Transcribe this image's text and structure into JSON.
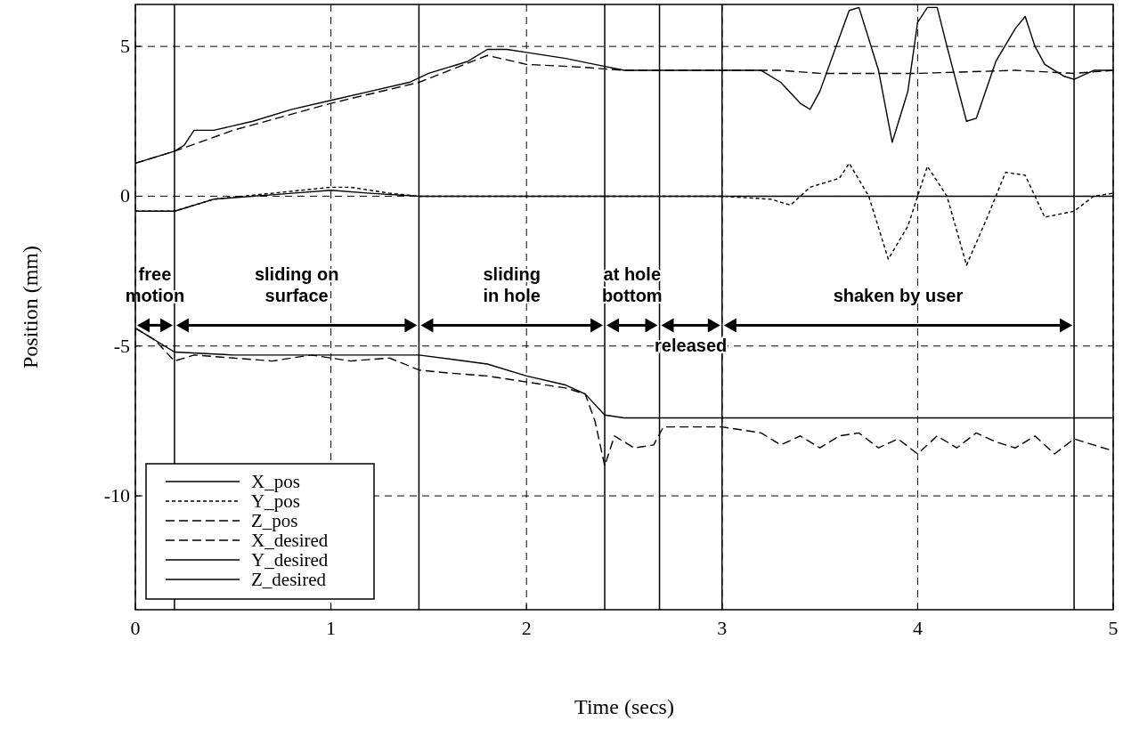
{
  "chart_data": {
    "type": "line",
    "xlabel": "Time (secs)",
    "ylabel": "Position (mm)",
    "xlim": [
      0,
      5
    ],
    "ylim": [
      -13.8,
      6.4
    ],
    "xticks": [
      0,
      1,
      2,
      3,
      4,
      5
    ],
    "yticks": [
      -10,
      -5,
      0,
      5
    ],
    "grid": true,
    "legend": "bottom left",
    "series": [
      {
        "name": "X_pos",
        "color": "#000000",
        "line_style": "solid",
        "x": [
          0,
          0.1,
          0.2,
          0.25,
          0.3,
          0.4,
          0.6,
          0.8,
          1.0,
          1.2,
          1.4,
          1.5,
          1.6,
          1.7,
          1.8,
          1.9,
          2.0,
          2.2,
          2.35,
          2.5,
          2.7,
          3.0,
          3.2,
          3.3,
          3.4,
          3.45,
          3.5,
          3.6,
          3.65,
          3.7,
          3.8,
          3.87,
          3.95,
          4.0,
          4.05,
          4.1,
          4.15,
          4.25,
          4.3,
          4.4,
          4.5,
          4.55,
          4.6,
          4.65,
          4.75,
          4.8,
          4.9,
          5.0
        ],
        "values": [
          1.1,
          1.3,
          1.5,
          1.7,
          2.2,
          2.2,
          2.5,
          2.9,
          3.2,
          3.5,
          3.8,
          4.1,
          4.3,
          4.5,
          4.9,
          4.9,
          4.8,
          4.6,
          4.4,
          4.2,
          4.2,
          4.2,
          4.2,
          3.8,
          3.1,
          2.9,
          3.5,
          5.3,
          6.2,
          6.3,
          4.2,
          1.8,
          3.5,
          5.8,
          6.3,
          6.3,
          5.0,
          2.5,
          2.6,
          4.5,
          5.6,
          6.0,
          5.0,
          4.4,
          4.0,
          3.9,
          4.2,
          4.2
        ]
      },
      {
        "name": "Y_pos",
        "color": "#000000",
        "line_style": "dotted",
        "x": [
          0,
          0.2,
          0.4,
          0.7,
          1.0,
          1.1,
          1.3,
          1.45,
          3.0,
          3.25,
          3.35,
          3.45,
          3.6,
          3.65,
          3.75,
          3.85,
          3.95,
          4.05,
          4.15,
          4.25,
          4.35,
          4.45,
          4.55,
          4.65,
          4.8,
          4.9,
          5.0
        ],
        "values": [
          -0.5,
          -0.5,
          -0.1,
          0.1,
          0.3,
          0.3,
          0.1,
          0,
          0,
          -0.1,
          -0.3,
          0.3,
          0.6,
          1.1,
          0,
          -2.1,
          -1.0,
          1.0,
          0,
          -2.3,
          -0.8,
          0.8,
          0.7,
          -0.7,
          -0.5,
          0,
          0.1
        ]
      },
      {
        "name": "Z_pos",
        "color": "#000000",
        "line_style": "dashed",
        "x": [
          0,
          0.1,
          0.2,
          0.3,
          0.5,
          0.7,
          0.9,
          1.1,
          1.3,
          1.45,
          1.6,
          1.8,
          2.0,
          2.2,
          2.3,
          2.35,
          2.4,
          2.45,
          2.55,
          2.65,
          2.7,
          3.0,
          3.2,
          3.3,
          3.4,
          3.5,
          3.6,
          3.7,
          3.8,
          3.9,
          4.0,
          4.1,
          4.2,
          4.3,
          4.4,
          4.5,
          4.6,
          4.7,
          4.8,
          4.9,
          5.0
        ],
        "values": [
          -4.4,
          -4.8,
          -5.5,
          -5.3,
          -5.4,
          -5.5,
          -5.3,
          -5.5,
          -5.4,
          -5.8,
          -5.9,
          -6.0,
          -6.2,
          -6.4,
          -6.6,
          -7.5,
          -9.0,
          -8.0,
          -8.4,
          -8.3,
          -7.7,
          -7.7,
          -7.9,
          -8.3,
          -8.0,
          -8.4,
          -8.0,
          -7.9,
          -8.4,
          -8.1,
          -8.6,
          -8.0,
          -8.4,
          -7.9,
          -8.2,
          -8.4,
          -8.0,
          -8.6,
          -8.1,
          -8.3,
          -8.5
        ]
      },
      {
        "name": "X_desired",
        "color": "#000000",
        "line_style": "dashed",
        "x": [
          0,
          0.2,
          0.5,
          1.0,
          1.45,
          1.8,
          2.0,
          2.3,
          2.5,
          3.3,
          3.5,
          4.0,
          4.5,
          4.8,
          5.0
        ],
        "values": [
          1.1,
          1.5,
          2.2,
          3.1,
          3.8,
          4.7,
          4.4,
          4.3,
          4.2,
          4.2,
          4.1,
          4.1,
          4.2,
          4.1,
          4.2
        ]
      },
      {
        "name": "Y_desired",
        "color": "#000000",
        "line_style": "solid",
        "x": [
          0,
          0.2,
          0.4,
          0.8,
          1.0,
          1.2,
          1.45,
          5.0
        ],
        "values": [
          -0.5,
          -0.5,
          -0.1,
          0.1,
          0.2,
          0.1,
          0,
          0
        ]
      },
      {
        "name": "Z_desired",
        "color": "#000000",
        "line_style": "solid",
        "x": [
          0,
          0.2,
          0.5,
          1.0,
          1.45,
          1.8,
          2.0,
          2.2,
          2.3,
          2.4,
          2.5,
          5.0
        ],
        "values": [
          -4.4,
          -5.2,
          -5.3,
          -5.3,
          -5.3,
          -5.6,
          -6.0,
          -6.3,
          -6.6,
          -7.3,
          -7.4,
          -7.4
        ]
      }
    ],
    "ref_lines": [
      {
        "axis": "x",
        "value": 0.2
      },
      {
        "axis": "x",
        "value": 1.45
      },
      {
        "axis": "x",
        "value": 2.4
      },
      {
        "axis": "x",
        "value": 2.68
      },
      {
        "axis": "x",
        "value": 3.0
      },
      {
        "axis": "x",
        "value": 4.8
      }
    ],
    "annotations": [
      "free\nmotion",
      "sliding on\nsurface",
      "sliding\nin hole",
      "at hole\nbottom",
      "released",
      "shaken by user"
    ]
  }
}
